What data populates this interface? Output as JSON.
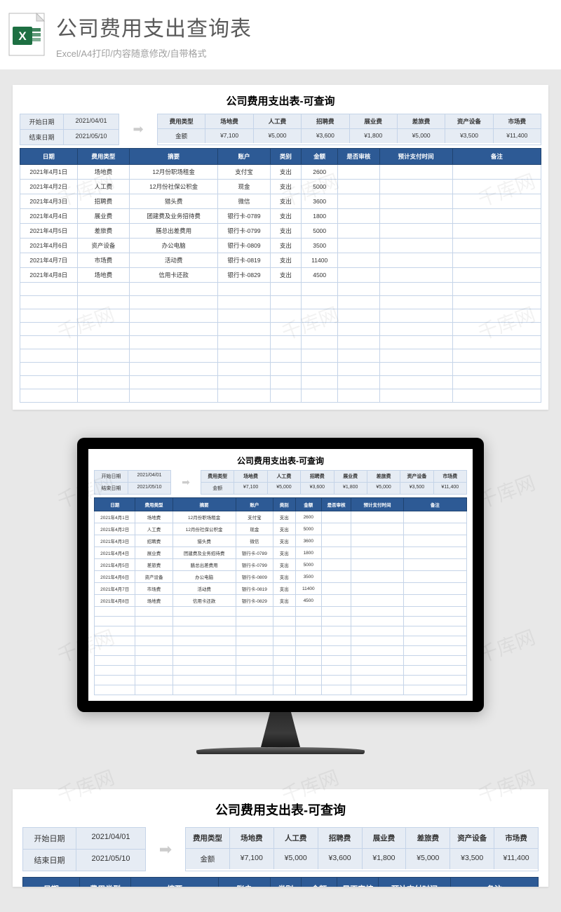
{
  "header": {
    "title": "公司费用支出查询表",
    "subtitle": "Excel/A4打印/内容随意修改/自带格式"
  },
  "sheet": {
    "title": "公司费用支出表-可查询",
    "dates": {
      "start_label": "开始日期",
      "start_value": "2021/04/01",
      "end_label": "结束日期",
      "end_value": "2021/05/10"
    },
    "summary": {
      "header_label": "费用类型",
      "amount_label": "金额",
      "categories": [
        "场地费",
        "人工费",
        "招聘费",
        "展业费",
        "差旅费",
        "资产设备",
        "市场费"
      ],
      "amounts": [
        "¥7,100",
        "¥5,000",
        "¥3,600",
        "¥1,800",
        "¥5,000",
        "¥3,500",
        "¥11,400"
      ]
    },
    "columns": [
      "日期",
      "费用类型",
      "摘要",
      "账户",
      "类别",
      "金额",
      "是否审核",
      "预计支付时间",
      "备注"
    ],
    "rows": [
      [
        "2021年4月1日",
        "场地费",
        "12月份职场租金",
        "支付宝",
        "支出",
        "2600",
        "",
        "",
        ""
      ],
      [
        "2021年4月2日",
        "人工费",
        "12月份社保公积金",
        "现金",
        "支出",
        "5000",
        "",
        "",
        ""
      ],
      [
        "2021年4月3日",
        "招聘费",
        "猎头费",
        "微信",
        "支出",
        "3600",
        "",
        "",
        ""
      ],
      [
        "2021年4月4日",
        "展业费",
        "团建费及业务招待费",
        "银行卡-0789",
        "支出",
        "1800",
        "",
        "",
        ""
      ],
      [
        "2021年4月5日",
        "差旅费",
        "膳总出差费用",
        "银行卡-0799",
        "支出",
        "5000",
        "",
        "",
        ""
      ],
      [
        "2021年4月6日",
        "资产设备",
        "办公电脑",
        "银行卡-0809",
        "支出",
        "3500",
        "",
        "",
        ""
      ],
      [
        "2021年4月7日",
        "市场费",
        "活动费",
        "银行卡-0819",
        "支出",
        "11400",
        "",
        "",
        ""
      ],
      [
        "2021年4月8日",
        "场地费",
        "信用卡还款",
        "银行卡-0829",
        "支出",
        "4500",
        "",
        "",
        ""
      ]
    ],
    "empty_rows": 9,
    "colors": {
      "header_bg": "#2d5a95",
      "header_fg": "#ffffff",
      "cell_border": "#c5d4e8",
      "info_bg": "#e6ecf4"
    }
  },
  "watermark_text": "千库网"
}
